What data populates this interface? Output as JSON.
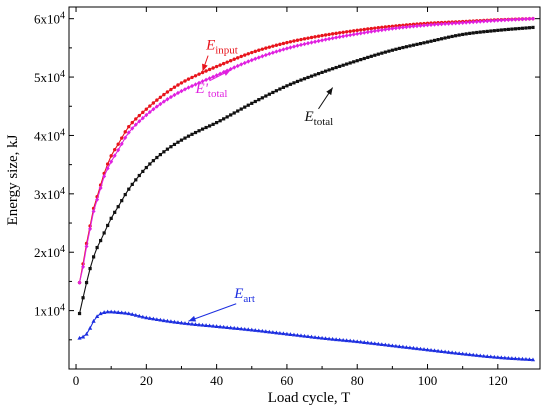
{
  "chart_data": {
    "type": "line",
    "title": "",
    "xlabel": "Load cycle, T",
    "ylabel": "Energy size, kJ",
    "xlim": [
      -2,
      132
    ],
    "ylim": [
      0,
      62000
    ],
    "xticks": [
      0,
      20,
      40,
      60,
      80,
      100,
      120
    ],
    "yticks": [
      {
        "value": 10000,
        "mantissa": "1x10",
        "exp": "4"
      },
      {
        "value": 20000,
        "mantissa": "2x10",
        "exp": "4"
      },
      {
        "value": 30000,
        "mantissa": "3x10",
        "exp": "4"
      },
      {
        "value": 40000,
        "mantissa": "4x10",
        "exp": "4"
      },
      {
        "value": 50000,
        "mantissa": "5x10",
        "exp": "4"
      },
      {
        "value": 60000,
        "mantissa": "6x10",
        "exp": "4"
      }
    ],
    "grid": false,
    "series": [
      {
        "name_main": "E",
        "name_sub": "input",
        "color": "#e8141c",
        "marker": "circle",
        "x": [
          1,
          2,
          3,
          4,
          5,
          6,
          7,
          8,
          10,
          12,
          15,
          20,
          25,
          30,
          35,
          40,
          50,
          60,
          70,
          80,
          90,
          100,
          110,
          120,
          130
        ],
        "y": [
          14800,
          18000,
          21500,
          24500,
          27500,
          29500,
          31500,
          33500,
          36500,
          38500,
          41500,
          44500,
          47000,
          49000,
          50500,
          51800,
          54200,
          55900,
          57100,
          58000,
          58700,
          59200,
          59500,
          59800,
          60000
        ]
      },
      {
        "name_main": "E'",
        "name_sub": "total",
        "color": "#e020e0",
        "marker": "diamond",
        "x": [
          1,
          2,
          3,
          4,
          5,
          6,
          7,
          8,
          10,
          12,
          15,
          20,
          25,
          30,
          35,
          40,
          50,
          60,
          70,
          80,
          90,
          100,
          110,
          120,
          130
        ],
        "y": [
          14800,
          17500,
          21000,
          24000,
          27000,
          29000,
          31000,
          33000,
          35500,
          37500,
          40500,
          43500,
          45800,
          47600,
          49000,
          50300,
          52900,
          54900,
          56300,
          57400,
          58300,
          58900,
          59300,
          59700,
          60000
        ]
      },
      {
        "name_main": "E",
        "name_sub": "total",
        "color": "#111111",
        "marker": "square",
        "x": [
          1,
          2,
          3,
          4,
          5,
          6,
          7,
          8,
          10,
          12,
          15,
          20,
          25,
          30,
          35,
          40,
          50,
          60,
          70,
          80,
          90,
          100,
          110,
          120,
          130
        ],
        "y": [
          9500,
          12200,
          14800,
          17200,
          19200,
          20800,
          22000,
          23300,
          25800,
          27800,
          30800,
          34500,
          37200,
          39200,
          40800,
          42200,
          45500,
          48500,
          50800,
          52800,
          54600,
          56000,
          57300,
          58000,
          58500
        ]
      },
      {
        "name_main": "E",
        "name_sub": "art",
        "color": "#1c2ee0",
        "marker": "triangle",
        "x": [
          1,
          2,
          3,
          4,
          5,
          6,
          7,
          8,
          9,
          10,
          12,
          15,
          20,
          30,
          40,
          50,
          60,
          70,
          80,
          90,
          100,
          110,
          120,
          130
        ],
        "y": [
          5300,
          5500,
          6000,
          7000,
          8200,
          9000,
          9500,
          9700,
          9800,
          9800,
          9700,
          9500,
          8800,
          7900,
          7300,
          6700,
          6000,
          5300,
          4700,
          4000,
          3300,
          2600,
          2000,
          1600
        ]
      }
    ],
    "annotations": [
      {
        "main": "E",
        "sub": "input",
        "color": "#e8141c",
        "at": [
          37,
          54700
        ],
        "arrow_to": [
          36,
          51000
        ]
      },
      {
        "main": "E'",
        "sub": "total",
        "color": "#e020e0",
        "at": [
          34,
          47300
        ],
        "arrow_to": [
          44,
          51200
        ]
      },
      {
        "main": "E",
        "sub": "total",
        "color": "#111111",
        "at": [
          65,
          42500
        ],
        "arrow_to": [
          73,
          48200
        ]
      },
      {
        "main": "E",
        "sub": "art",
        "color": "#1c2ee0",
        "at": [
          45,
          12200
        ],
        "arrow_to": [
          32,
          8200
        ]
      }
    ]
  }
}
